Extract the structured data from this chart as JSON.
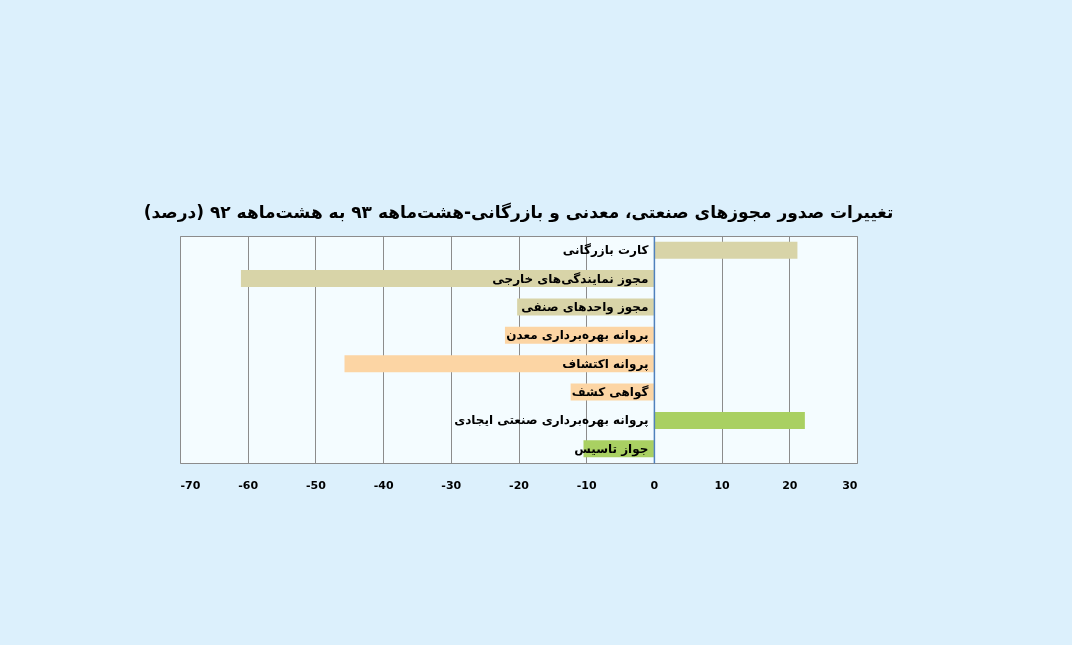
{
  "chart_data": {
    "type": "bar",
    "orientation": "horizontal",
    "title": "تغییرات صدور مجوزهای صنعتی، معدنی و بازرگانی-هشت‌ماهه ۹۳ به هشت‌ماهه ۹۲ (درصد)",
    "categories": [
      "کارت بازرگانی",
      "مجوز نمایندگی‌های خارجی",
      "مجوز واحدهای صنفی",
      "پروانه بهره‌برداری معدن",
      "پروانه اکتشاف",
      "گواهی کشف",
      "پروانه بهره‌برداری صنعتی ایجادی",
      "جواز تاسیس"
    ],
    "values": [
      21.2,
      -61,
      -20.2,
      -22,
      -45.7,
      -12.3,
      22.3,
      -10.4
    ],
    "colors": [
      "#d8d4a8",
      "#d8d4a8",
      "#d8d4a8",
      "#fcd5a4",
      "#fcd5a4",
      "#fcd5a4",
      "#a9d062",
      "#a9d062"
    ],
    "xlim": [
      -70,
      30
    ],
    "xticks": [
      -70,
      -60,
      -50,
      -40,
      -30,
      -20,
      -10,
      0,
      10,
      20,
      30
    ],
    "grid": "x"
  }
}
